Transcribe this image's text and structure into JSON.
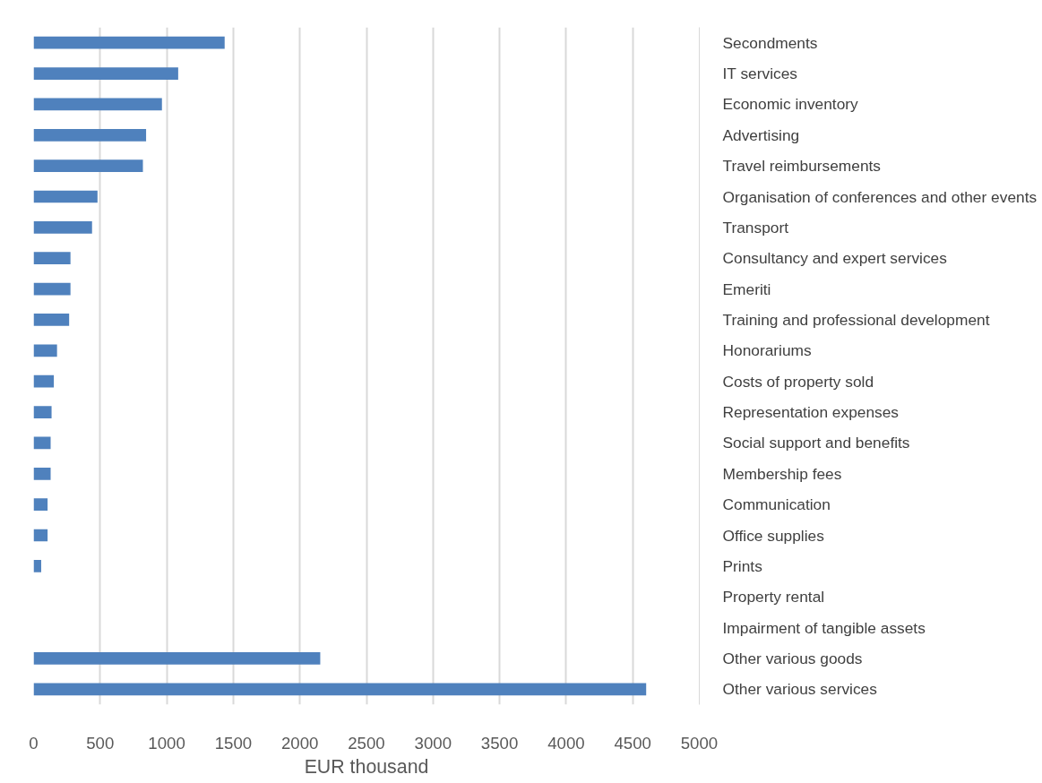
{
  "chart_data": {
    "type": "bar",
    "orientation": "horizontal",
    "xlabel": "EUR thousand",
    "categories": [
      "Secondments",
      "IT services",
      "Economic inventory",
      "Advertising",
      "Travel reimbursements",
      "Organisation of conferences and other events",
      "Transport",
      "Consultancy and expert services",
      "Emeriti",
      "Training and professional development",
      "Honorariums",
      "Costs of property sold",
      "Representation expenses",
      "Social support and benefits",
      "Membership fees",
      "Communication",
      "Office supplies",
      "Prints",
      "Property rental",
      "Impairment of tangible assets",
      "Other various goods",
      "Other various services"
    ],
    "values": [
      1435,
      1086,
      964,
      845,
      821,
      480,
      439,
      277,
      277,
      267,
      176,
      152,
      135,
      128,
      128,
      105,
      105,
      57,
      0,
      0,
      2153,
      4601
    ],
    "color": "#4f81bd",
    "xlim": [
      0,
      5000
    ],
    "xticks": [
      0,
      500,
      1000,
      1500,
      2000,
      2500,
      3000,
      3500,
      4000,
      4500,
      5000
    ],
    "grid": "x"
  }
}
